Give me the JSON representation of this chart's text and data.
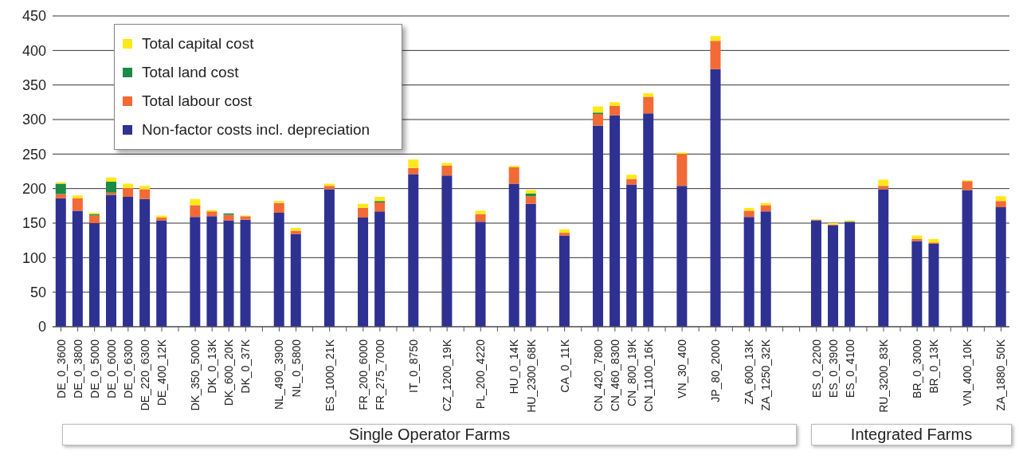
{
  "chart_data": {
    "type": "bar",
    "stacked": true,
    "categories": [
      "DE_0_3600",
      "DE_0_3800",
      "DE_0_5000",
      "DE_0_6000",
      "DE_0_6300",
      "DE_220_6300",
      "DE_400_12K",
      null,
      "DK_350_5000",
      "DK_0_13K",
      "DK_600_20K",
      "DK_0_37K",
      null,
      "NL_490_3900",
      "NL_0_5800",
      null,
      "ES_1000_21K",
      null,
      "FR_200_6000",
      "FR_275_7000",
      null,
      "IT_0_8750",
      null,
      "CZ_1200_19K",
      null,
      "PL_200_4220",
      null,
      "HU_0_14K",
      "HU_2300_68K",
      null,
      "CA_0_11K",
      null,
      "CN_420_7800",
      "CN_460_8300",
      "CN_800_19K",
      "CN_1100_16K",
      null,
      "VN_30_400",
      null,
      "JP_80_2000",
      null,
      "ZA_600_13K",
      "ZA_1250_32K",
      null,
      null,
      "ES_0_2200",
      "ES_0_3900",
      "ES_0_4100",
      null,
      "RU_3200_83K",
      null,
      "BR_0_3000",
      "BR_0_13K",
      null,
      "VN_400_10K",
      null,
      "ZA_1880_50K"
    ],
    "series": [
      {
        "name": "Non-factor costs incl. depreciation",
        "color": "#2e3192",
        "values": [
          186,
          168,
          150,
          191,
          188,
          185,
          154,
          null,
          159,
          160,
          154,
          155,
          null,
          165,
          134,
          null,
          199,
          null,
          158,
          167,
          null,
          221,
          null,
          219,
          null,
          152,
          null,
          207,
          178,
          null,
          132,
          null,
          291,
          306,
          206,
          309,
          null,
          204,
          null,
          373,
          null,
          159,
          167,
          null,
          null,
          154,
          147,
          152,
          null,
          199,
          null,
          124,
          120,
          null,
          198,
          null,
          173
        ]
      },
      {
        "name": "Total labour cost",
        "color": "#f26a35",
        "values": [
          6,
          18,
          11,
          3,
          13,
          14,
          4,
          null,
          17,
          7,
          8,
          5,
          null,
          14,
          5,
          null,
          5,
          null,
          14,
          13,
          null,
          9,
          null,
          14,
          null,
          11,
          null,
          24,
          11,
          null,
          4,
          null,
          17,
          14,
          8,
          24,
          null,
          46,
          null,
          41,
          null,
          9,
          9,
          null,
          null,
          1,
          1,
          0,
          null,
          5,
          null,
          3,
          2,
          null,
          13,
          null,
          9
        ]
      },
      {
        "name": "Total land cost",
        "color": "#1a8a47",
        "values": [
          15,
          0,
          2,
          16,
          0,
          0,
          0,
          null,
          0,
          0,
          2,
          0,
          null,
          0,
          0,
          null,
          0,
          null,
          0,
          2,
          null,
          0,
          null,
          0,
          null,
          0,
          null,
          0,
          4,
          null,
          0,
          null,
          2,
          0,
          0,
          0,
          null,
          0,
          null,
          0,
          null,
          0,
          0,
          null,
          null,
          0,
          0,
          0,
          null,
          0,
          null,
          0,
          0,
          null,
          0,
          null,
          0
        ]
      },
      {
        "name": "Total capital cost",
        "color": "#ffe81a",
        "values": [
          2,
          4,
          2,
          6,
          6,
          5,
          3,
          null,
          9,
          2,
          0,
          1,
          null,
          3,
          4,
          null,
          3,
          null,
          6,
          6,
          null,
          12,
          null,
          4,
          null,
          5,
          null,
          2,
          5,
          null,
          5,
          null,
          9,
          5,
          6,
          5,
          null,
          2,
          null,
          7,
          null,
          4,
          3,
          null,
          null,
          1,
          2,
          2,
          null,
          9,
          null,
          5,
          5,
          null,
          1,
          null,
          7
        ]
      }
    ],
    "ylim": [
      0,
      450
    ],
    "yticks": [
      0,
      50,
      100,
      150,
      200,
      250,
      300,
      350,
      400,
      450
    ],
    "grid": "y",
    "legend": "top left",
    "annotations": [
      "Single Operator Farms",
      "Integrated Farms"
    ]
  }
}
